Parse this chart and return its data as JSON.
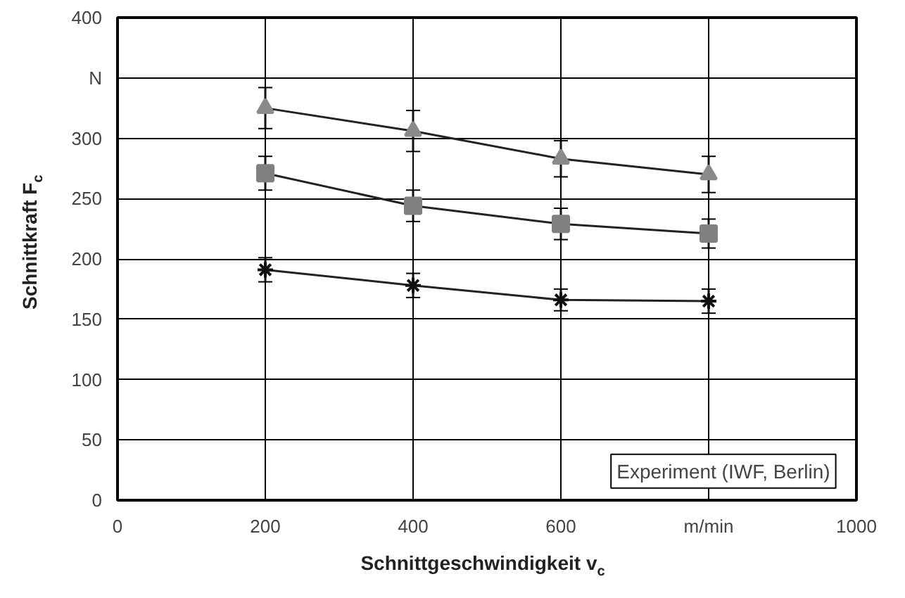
{
  "chart_data": {
    "type": "line",
    "xlabel": "Schnittgeschwindigkeit v$_{c}$",
    "ylabel": "Schnittkraft F$_{c}$",
    "x": [
      200,
      400,
      600,
      800
    ],
    "series": [
      {
        "color": "#8a8a8a",
        "marker": "triangle",
        "values": [
          325,
          306,
          283,
          270
        ],
        "errors": [
          17,
          17,
          15,
          15
        ]
      },
      {
        "color": "#808080",
        "marker": "square",
        "values": [
          271,
          244,
          229,
          221
        ],
        "errors": [
          14,
          13,
          13,
          12
        ]
      },
      {
        "color": "#111111",
        "marker": "cross",
        "values": [
          191,
          178,
          166,
          165
        ],
        "errors": [
          10,
          10,
          9,
          10
        ]
      }
    ],
    "xlim": [
      0,
      1000
    ],
    "ylim": [
      0,
      400
    ],
    "xticks": [
      0,
      200,
      400,
      600,
      {
        "value": 800,
        "label": "m/min"
      },
      1000
    ],
    "yticks": [
      0,
      50,
      100,
      150,
      200,
      250,
      300,
      {
        "value": 350,
        "label": "N"
      },
      400
    ],
    "grid": true,
    "annotations": [
      "Experiment (IWF, Berlin)"
    ]
  }
}
